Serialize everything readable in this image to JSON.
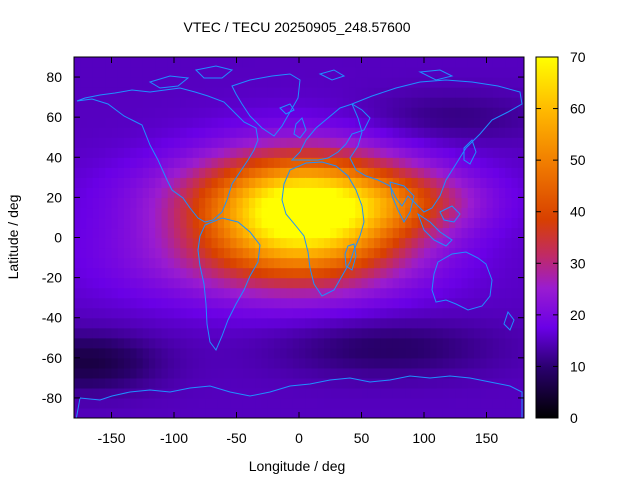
{
  "chart_data": {
    "type": "heatmap",
    "title": "VTEC / TECU 20250905_248.57600",
    "xlabel": "Longitude / deg",
    "ylabel": "Latitude / deg",
    "xlim": [
      -180,
      180
    ],
    "ylim": [
      -90,
      90
    ],
    "xticks": [
      -150,
      -100,
      -50,
      0,
      50,
      100,
      150
    ],
    "yticks": [
      -80,
      -60,
      -40,
      -20,
      0,
      20,
      40,
      60,
      80
    ],
    "colorbar": {
      "label": "",
      "min": 0,
      "max": 70,
      "ticks": [
        0,
        10,
        20,
        30,
        40,
        50,
        60,
        70
      ]
    },
    "colormap": "gnuplot (black-purple-red-orange-yellow)",
    "overlay": "coastlines",
    "field_features": [
      {
        "name": "equatorial-maximum",
        "lon": 5,
        "lat": 12,
        "value": 68
      },
      {
        "name": "crest-north",
        "lon": -10,
        "lat": 22,
        "value": 55
      },
      {
        "name": "crest-south",
        "lon": -30,
        "lat": -10,
        "value": 55
      },
      {
        "name": "polar-minimum-south",
        "lon": -170,
        "lat": -62,
        "value": 6
      }
    ],
    "background_value": 15
  }
}
